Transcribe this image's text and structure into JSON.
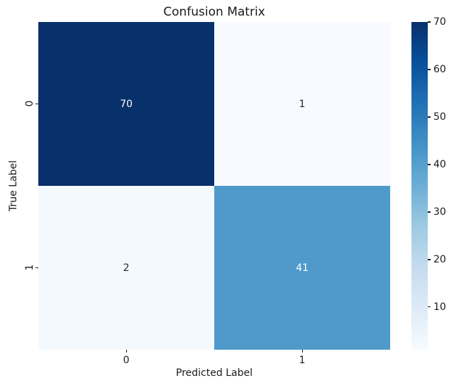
{
  "chart_data": {
    "type": "heatmap",
    "title": "Confusion Matrix",
    "xlabel": "Predicted Label",
    "ylabel": "True Label",
    "x_ticklabels": [
      "0",
      "1"
    ],
    "y_ticklabels": [
      "0",
      "1"
    ],
    "matrix": [
      [
        70,
        1
      ],
      [
        2,
        41
      ]
    ],
    "cell_colors": [
      [
        "#08306b",
        "#f7fbff"
      ],
      [
        "#f4f9fe",
        "#4f9acb"
      ]
    ],
    "cell_text_colors": [
      [
        "#ffffff",
        "#262626"
      ],
      [
        "#262626",
        "#ffffff"
      ]
    ],
    "grid": false,
    "legend": "none",
    "colorbar": {
      "min": 1,
      "max": 70,
      "ticks": [
        10,
        20,
        30,
        40,
        50,
        60,
        70
      ],
      "gradient": [
        {
          "color": "#f7fbff",
          "pos": 0
        },
        {
          "color": "#deebf7",
          "pos": 12.5
        },
        {
          "color": "#c6dbef",
          "pos": 25
        },
        {
          "color": "#9ecae1",
          "pos": 37.5
        },
        {
          "color": "#6baed6",
          "pos": 50
        },
        {
          "color": "#4292c6",
          "pos": 62.5
        },
        {
          "color": "#2171b5",
          "pos": 75
        },
        {
          "color": "#08519c",
          "pos": 87.5
        },
        {
          "color": "#08306b",
          "pos": 100
        }
      ]
    }
  }
}
